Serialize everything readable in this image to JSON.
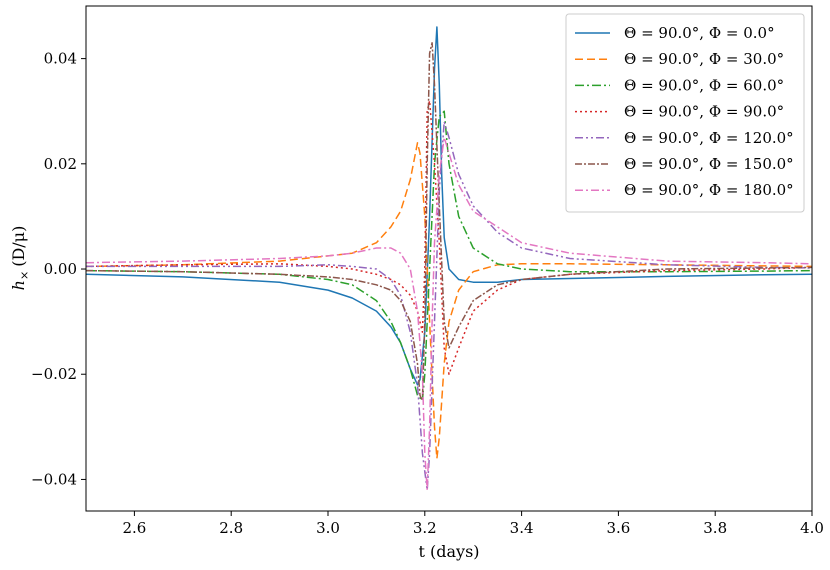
{
  "chart_data": {
    "type": "line",
    "xlabel": "t (days)",
    "ylabel_main": "h",
    "ylabel_sub": "×",
    "ylabel_unit": "(D/μ)",
    "xlim": [
      2.5,
      4.0
    ],
    "ylim": [
      -0.046,
      0.05
    ],
    "xticks": [
      2.6,
      2.8,
      3.0,
      3.2,
      3.4,
      3.6,
      3.8,
      4.0
    ],
    "xtick_labels": [
      "2.6",
      "2.8",
      "3.0",
      "3.2",
      "3.4",
      "3.6",
      "3.8",
      "4.0"
    ],
    "yticks": [
      -0.04,
      -0.02,
      0.0,
      0.02,
      0.04
    ],
    "ytick_labels": [
      "−0.04",
      "−0.02",
      "0.00",
      "0.02",
      "0.04"
    ],
    "grid": false,
    "legend_position": "top-right",
    "series": [
      {
        "name": "Θ = 90.0°,  Φ = 0.0°",
        "color": "#1f77b4",
        "dash": "solid",
        "x": [
          2.5,
          2.7,
          2.9,
          3.0,
          3.05,
          3.1,
          3.13,
          3.15,
          3.17,
          3.185,
          3.19,
          3.2,
          3.21,
          3.22,
          3.225,
          3.23,
          3.235,
          3.24,
          3.25,
          3.27,
          3.3,
          3.35,
          3.4,
          3.5,
          3.7,
          3.9,
          4.0
        ],
        "y": [
          -0.001,
          -0.0015,
          -0.0025,
          -0.004,
          -0.0055,
          -0.008,
          -0.011,
          -0.014,
          -0.019,
          -0.022,
          -0.021,
          -0.012,
          0.01,
          0.038,
          0.046,
          0.035,
          0.018,
          0.006,
          0.0,
          -0.002,
          -0.0025,
          -0.0025,
          -0.002,
          -0.0018,
          -0.0014,
          -0.0011,
          -0.001
        ]
      },
      {
        "name": "Θ = 90.0°,  Φ = 30.0°",
        "color": "#ff7f0e",
        "dash": "8,4",
        "x": [
          2.5,
          2.7,
          2.9,
          3.0,
          3.05,
          3.1,
          3.13,
          3.15,
          3.17,
          3.185,
          3.19,
          3.2,
          3.21,
          3.22,
          3.225,
          3.23,
          3.24,
          3.25,
          3.27,
          3.3,
          3.35,
          3.4,
          3.5,
          3.7,
          3.9,
          4.0
        ],
        "y": [
          0.0005,
          0.0008,
          0.0015,
          0.0025,
          0.003,
          0.005,
          0.008,
          0.011,
          0.017,
          0.024,
          0.022,
          0.01,
          -0.01,
          -0.03,
          -0.036,
          -0.032,
          -0.018,
          -0.01,
          -0.004,
          -0.0005,
          0.0008,
          0.001,
          0.001,
          0.0008,
          0.0006,
          0.0005
        ]
      },
      {
        "name": "Θ = 90.0°,  Φ = 60.0°",
        "color": "#2ca02c",
        "dash": "9,3,2,3",
        "x": [
          2.5,
          2.7,
          2.9,
          3.0,
          3.05,
          3.1,
          3.13,
          3.15,
          3.17,
          3.185,
          3.195,
          3.2,
          3.21,
          3.22,
          3.23,
          3.24,
          3.25,
          3.27,
          3.3,
          3.35,
          3.4,
          3.5,
          3.7,
          3.9,
          4.0
        ],
        "y": [
          -0.0003,
          -0.0005,
          -0.001,
          -0.002,
          -0.003,
          -0.006,
          -0.01,
          -0.014,
          -0.019,
          -0.024,
          -0.025,
          -0.02,
          0.0,
          0.02,
          0.029,
          0.03,
          0.02,
          0.01,
          0.004,
          0.001,
          0.0,
          -0.0005,
          -0.0005,
          -0.0004,
          -0.0003
        ]
      },
      {
        "name": "Θ = 90.0°,  Φ = 90.0°",
        "color": "#d62728",
        "dash": "2,3",
        "x": [
          2.5,
          2.7,
          2.9,
          3.0,
          3.05,
          3.1,
          3.13,
          3.15,
          3.17,
          3.185,
          3.195,
          3.2,
          3.205,
          3.21,
          3.22,
          3.23,
          3.24,
          3.25,
          3.27,
          3.3,
          3.35,
          3.4,
          3.5,
          3.7,
          3.9,
          4.0
        ],
        "y": [
          0.0005,
          0.0008,
          0.001,
          0.0005,
          0.0,
          -0.001,
          -0.002,
          -0.003,
          -0.005,
          -0.008,
          -0.012,
          0.0,
          0.03,
          0.032,
          0.02,
          0.005,
          -0.015,
          -0.02,
          -0.015,
          -0.008,
          -0.004,
          -0.002,
          -0.001,
          -0.0003,
          0.0,
          0.0003
        ]
      },
      {
        "name": "Θ = 90.0°,  Φ = 120.0°",
        "color": "#9467bd",
        "dash": "8,3,2,3,2,3",
        "x": [
          2.5,
          2.7,
          2.9,
          3.0,
          3.05,
          3.1,
          3.13,
          3.15,
          3.17,
          3.185,
          3.195,
          3.205,
          3.21,
          3.22,
          3.23,
          3.24,
          3.25,
          3.27,
          3.3,
          3.35,
          3.4,
          3.5,
          3.7,
          3.9,
          4.0
        ],
        "y": [
          0.0005,
          0.0005,
          0.0005,
          0.0008,
          0.0005,
          0.0,
          -0.002,
          -0.005,
          -0.012,
          -0.022,
          -0.035,
          -0.042,
          -0.035,
          -0.01,
          0.015,
          0.028,
          0.025,
          0.018,
          0.012,
          0.007,
          0.004,
          0.002,
          0.0008,
          0.0003,
          0.0002
        ]
      },
      {
        "name": "Θ = 90.0°,  Φ = 150.0°",
        "color": "#8c564b",
        "dash": "7,2,2,2",
        "x": [
          2.5,
          2.7,
          2.9,
          3.0,
          3.05,
          3.1,
          3.13,
          3.15,
          3.17,
          3.185,
          3.19,
          3.195,
          3.2,
          3.205,
          3.21,
          3.215,
          3.22,
          3.23,
          3.24,
          3.25,
          3.27,
          3.3,
          3.35,
          3.4,
          3.5,
          3.7,
          3.9,
          4.0
        ],
        "y": [
          -0.0003,
          -0.0005,
          -0.001,
          -0.0015,
          -0.002,
          -0.003,
          -0.004,
          -0.006,
          -0.01,
          -0.018,
          -0.024,
          -0.025,
          -0.01,
          0.02,
          0.041,
          0.043,
          0.035,
          0.012,
          -0.01,
          -0.015,
          -0.011,
          -0.006,
          -0.003,
          -0.002,
          -0.001,
          0.0,
          0.0002,
          0.0003
        ]
      },
      {
        "name": "Θ = 90.0°,  Φ = 180.0°",
        "color": "#e377c2",
        "dash": "8,3,2,3",
        "x": [
          2.5,
          2.7,
          2.9,
          3.0,
          3.05,
          3.1,
          3.13,
          3.15,
          3.17,
          3.185,
          3.195,
          3.2,
          3.205,
          3.21,
          3.215,
          3.22,
          3.23,
          3.24,
          3.25,
          3.27,
          3.3,
          3.35,
          3.4,
          3.5,
          3.7,
          3.9,
          4.0
        ],
        "y": [
          0.0012,
          0.0015,
          0.002,
          0.0025,
          0.003,
          0.004,
          0.004,
          0.003,
          0.0,
          -0.008,
          -0.02,
          -0.035,
          -0.042,
          -0.03,
          -0.01,
          0.005,
          0.018,
          0.025,
          0.022,
          0.016,
          0.011,
          0.008,
          0.005,
          0.003,
          0.0015,
          0.0012,
          0.001
        ]
      }
    ]
  }
}
